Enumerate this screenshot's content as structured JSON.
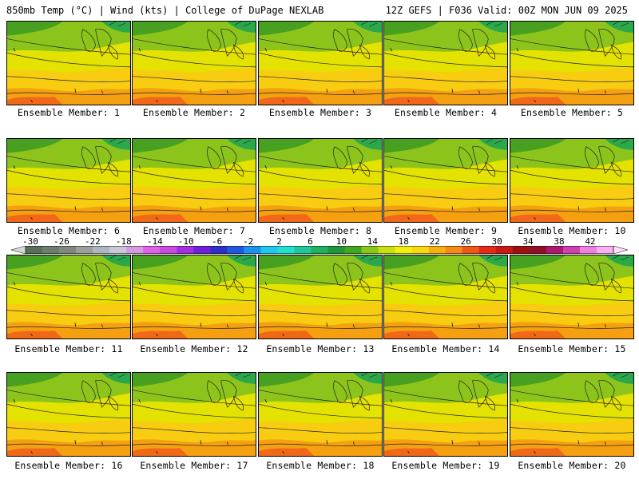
{
  "header": {
    "left": "850mb Temp (°C) | Wind (kts) | College of DuPage NEXLAB",
    "right": "12Z GEFS | F036 Valid: 00Z MON JUN 09 2025"
  },
  "members": [
    "Ensemble Member: 1",
    "Ensemble Member: 2",
    "Ensemble Member: 3",
    "Ensemble Member: 4",
    "Ensemble Member: 5",
    "Ensemble Member: 6",
    "Ensemble Member: 7",
    "Ensemble Member: 8",
    "Ensemble Member: 9",
    "Ensemble Member: 10",
    "Ensemble Member: 11",
    "Ensemble Member: 12",
    "Ensemble Member: 13",
    "Ensemble Member: 14",
    "Ensemble Member: 15",
    "Ensemble Member: 16",
    "Ensemble Member: 17",
    "Ensemble Member: 18",
    "Ensemble Member: 19",
    "Ensemble Member: 20"
  ],
  "colorbar": {
    "labels": [
      "-30",
      "-26",
      "-22",
      "-18",
      "-14",
      "-10",
      "-6",
      "-2",
      "2",
      "6",
      "10",
      "14",
      "18",
      "22",
      "26",
      "30",
      "34",
      "38",
      "42"
    ],
    "colors": [
      "#5a6e5a",
      "#6e7e6e",
      "#7f8a7f",
      "#9aa09a",
      "#b0b6c0",
      "#c8c8d8",
      "#d59be0",
      "#e060e8",
      "#c848e0",
      "#a030e0",
      "#7020d8",
      "#3030c8",
      "#2058e0",
      "#2090f0",
      "#20c8f0",
      "#20e0d0",
      "#20c898",
      "#20b060",
      "#209838",
      "#40a820",
      "#88c818",
      "#c8e010",
      "#f0f010",
      "#f8d810",
      "#f8b010",
      "#f88818",
      "#f05818",
      "#e82818",
      "#c81818",
      "#a01010",
      "#901028",
      "#b01870",
      "#d040b0",
      "#f080e0",
      "#f8b0f0"
    ]
  }
}
